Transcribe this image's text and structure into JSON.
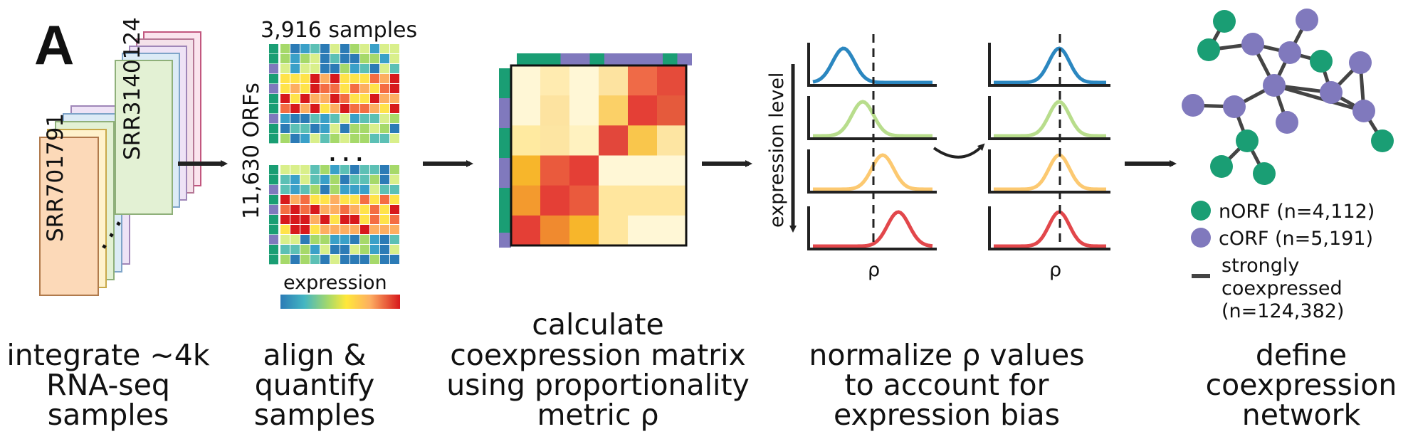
{
  "panel_label": "A",
  "step1": {
    "accessions": [
      "SRR701791",
      "SRR3140124"
    ],
    "ellipsis": ". . .",
    "caption": [
      "integrate ~4k",
      "RNA-seq",
      "samples"
    ]
  },
  "step2": {
    "top_label": "3,916 samples",
    "side_label": "11,630 ORFs",
    "ellipsis": ". . .",
    "colorbar_label": "expression",
    "caption": [
      "align &",
      "quantify",
      "samples"
    ]
  },
  "step3": {
    "caption": [
      "calculate",
      "coexpression matrix",
      "using proportionality",
      "metric ρ"
    ]
  },
  "step4": {
    "axis_label": "expression level",
    "rho_left": "ρ",
    "rho_right": "ρ",
    "caption": [
      "normalize ρ values",
      "to account for",
      "expression bias"
    ]
  },
  "step5": {
    "legend": {
      "norf": "nORF (n=4,112)",
      "corf": "cORF (n=5,191)",
      "edge": [
        "strongly",
        "coexpressed",
        "(n=124,382)"
      ]
    },
    "caption": [
      "define",
      "coexpression",
      "network"
    ]
  },
  "colors": {
    "norf": "#1a9e74",
    "corf": "#8079bd",
    "arrow": "#222222",
    "curves": [
      "#2b87c0",
      "#b8dd8c",
      "#fcc971",
      "#e2474b"
    ]
  },
  "icons": [
    "stacked-sample-files",
    "heatmap",
    "correlation-matrix",
    "density-curves",
    "network-graph"
  ]
}
